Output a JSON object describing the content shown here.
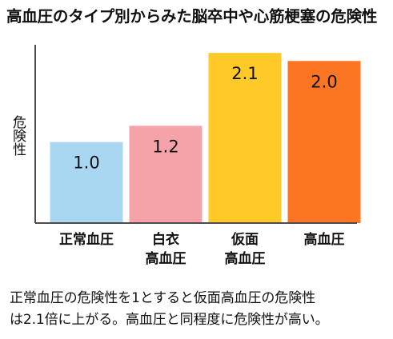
{
  "title": "高血圧のタイプ別からみた脳卒中や心筋梗塞の危険性",
  "caption": {
    "line1": "正常血圧の危険性を1とすると仮面高血圧の危険性",
    "line2": "は2.1倍に上がる。高血圧と同程度に危険性が高い。"
  },
  "chart_data": {
    "type": "bar",
    "title": "高血圧のタイプ別からみた脳卒中や心筋梗塞の危険性",
    "ylabel": "危険性",
    "xlabel": "",
    "ylim": [
      0,
      2.2
    ],
    "grid": false,
    "categories": [
      [
        "正常血圧"
      ],
      [
        "白衣",
        "高血圧"
      ],
      [
        "仮面",
        "高血圧"
      ],
      [
        "高血圧"
      ]
    ],
    "values": [
      1.0,
      1.2,
      2.1,
      2.0
    ],
    "data_labels": [
      "1.0",
      "1.2",
      "2.1",
      "2.0"
    ],
    "colors": [
      "#a9d7f2",
      "#f5a3a8",
      "#ffc928",
      "#fb7523"
    ],
    "axis_color": "#4d4d4d"
  }
}
